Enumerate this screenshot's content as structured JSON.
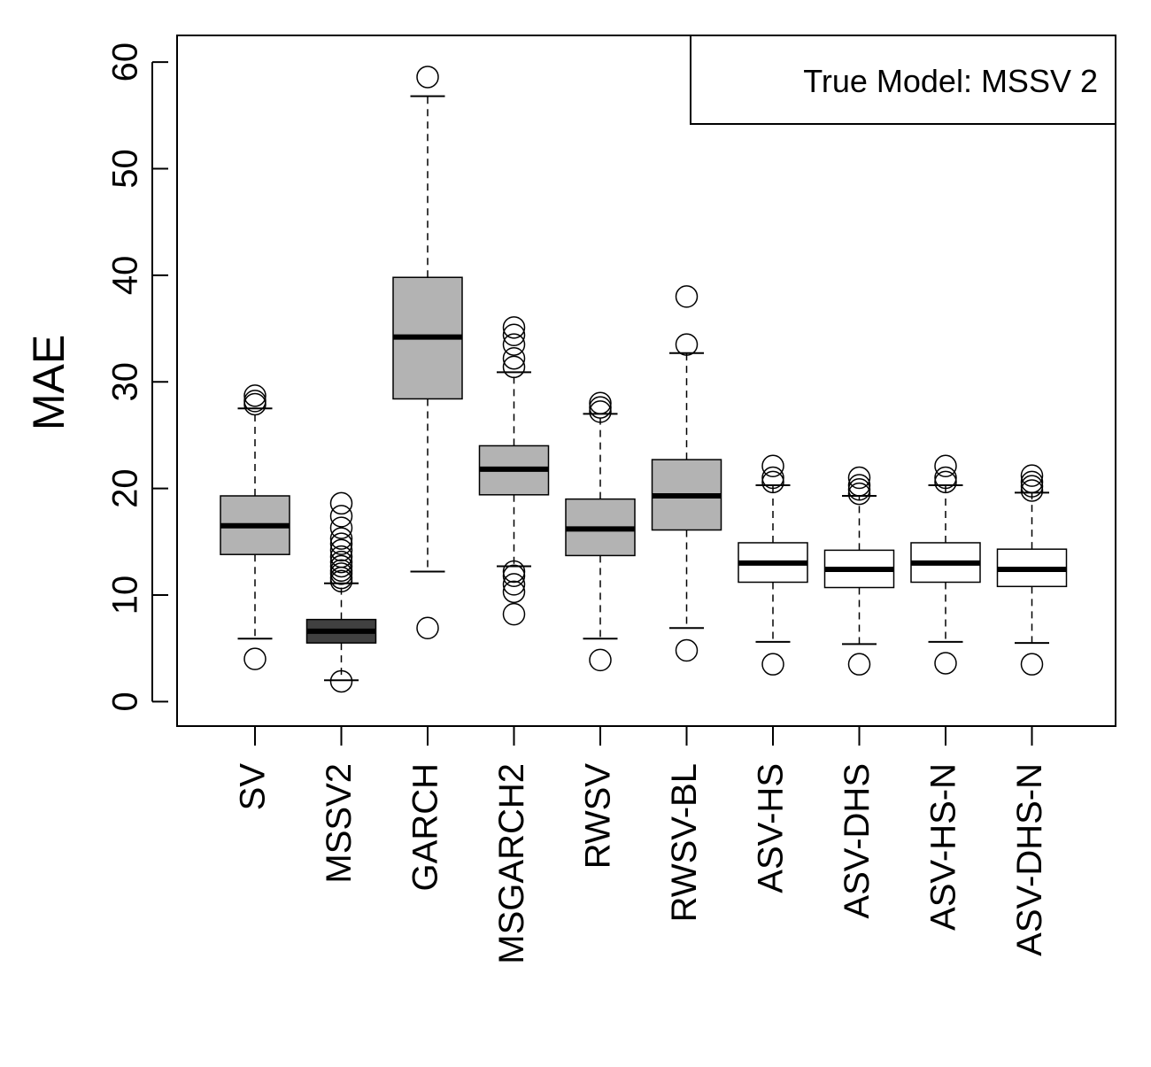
{
  "chart_data": {
    "type": "boxplot",
    "title": "",
    "xlabel": "",
    "ylabel": "MAE",
    "ylim": [
      -2.3,
      62.5
    ],
    "yticks": [
      0,
      10,
      20,
      30,
      40,
      50,
      60
    ],
    "legend": {
      "text": "True Model: MSSV 2",
      "position": "top-right"
    },
    "colors": {
      "light": "#b3b3b3",
      "dark": "#404040",
      "white": "#ffffff",
      "line": "#000000"
    },
    "categories": [
      "SV",
      "MSSV2",
      "GARCH",
      "MSGARCH2",
      "RWSV",
      "RWSV-BL",
      "ASV-HS",
      "ASV-DHS",
      "ASV-HS-N",
      "ASV-DHS-N"
    ],
    "boxes": [
      {
        "label": "SV",
        "fill": "light",
        "whisker_low": 5.9,
        "q1": 13.8,
        "median": 16.5,
        "q3": 19.3,
        "whisker_high": 27.5,
        "outliers": [
          4.0,
          27.9,
          28.2,
          28.7
        ]
      },
      {
        "label": "MSSV2",
        "fill": "dark",
        "whisker_low": 2.0,
        "q1": 5.5,
        "median": 6.6,
        "q3": 7.7,
        "whisker_high": 11.1,
        "outliers": [
          1.9,
          11.3,
          11.6,
          12.0,
          12.3,
          12.7,
          13.1,
          13.6,
          14.2,
          14.8,
          15.3,
          16.3,
          17.4,
          18.6
        ]
      },
      {
        "label": "GARCH",
        "fill": "light",
        "whisker_low": 12.2,
        "q1": 28.4,
        "median": 34.2,
        "q3": 39.8,
        "whisker_high": 56.8,
        "outliers": [
          6.9,
          58.6
        ]
      },
      {
        "label": "MSGARCH2",
        "fill": "light",
        "whisker_low": 12.7,
        "q1": 19.4,
        "median": 21.8,
        "q3": 24.0,
        "whisker_high": 30.9,
        "outliers": [
          8.2,
          10.3,
          11.0,
          11.8,
          12.2,
          31.4,
          32.2,
          33.5,
          34.4,
          35.1
        ]
      },
      {
        "label": "RWSV",
        "fill": "light",
        "whisker_low": 5.9,
        "q1": 13.7,
        "median": 16.2,
        "q3": 19.0,
        "whisker_high": 27.0,
        "outliers": [
          3.9,
          27.2,
          27.6,
          28.0
        ]
      },
      {
        "label": "RWSV-BL",
        "fill": "light",
        "whisker_low": 6.9,
        "q1": 16.1,
        "median": 19.3,
        "q3": 22.7,
        "whisker_high": 32.7,
        "outliers": [
          4.8,
          33.5,
          38.0
        ]
      },
      {
        "label": "ASV-HS",
        "fill": "white",
        "whisker_low": 5.6,
        "q1": 11.2,
        "median": 13.0,
        "q3": 14.9,
        "whisker_high": 20.3,
        "outliers": [
          3.5,
          20.6,
          21.0,
          22.1
        ]
      },
      {
        "label": "ASV-DHS",
        "fill": "white",
        "whisker_low": 5.4,
        "q1": 10.7,
        "median": 12.4,
        "q3": 14.2,
        "whisker_high": 19.3,
        "outliers": [
          3.5,
          19.5,
          19.9,
          20.3,
          21.0
        ]
      },
      {
        "label": "ASV-HS-N",
        "fill": "white",
        "whisker_low": 5.6,
        "q1": 11.2,
        "median": 13.0,
        "q3": 14.9,
        "whisker_high": 20.3,
        "outliers": [
          3.6,
          20.6,
          21.0,
          22.1
        ]
      },
      {
        "label": "ASV-DHS-N",
        "fill": "white",
        "whisker_low": 5.5,
        "q1": 10.8,
        "median": 12.4,
        "q3": 14.3,
        "whisker_high": 19.6,
        "outliers": [
          3.5,
          19.8,
          20.2,
          20.6,
          21.2
        ]
      }
    ]
  }
}
